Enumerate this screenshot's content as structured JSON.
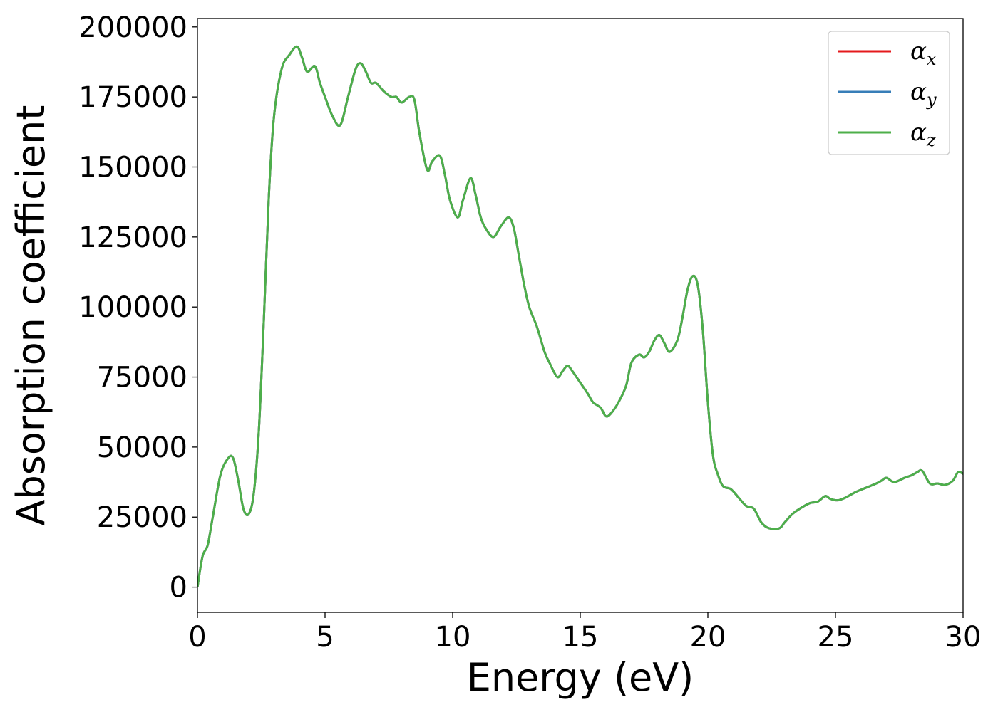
{
  "chart_data": {
    "type": "line",
    "title": "",
    "xlabel": "Energy (eV)",
    "ylabel": "Absorption coefficient",
    "xlim": [
      0,
      30
    ],
    "ylim": [
      -9000,
      203000
    ],
    "xticks": [
      0,
      5,
      10,
      15,
      20,
      25,
      30
    ],
    "xtick_labels": [
      "0",
      "5",
      "10",
      "15",
      "20",
      "25",
      "30"
    ],
    "yticks": [
      0,
      25000,
      50000,
      75000,
      100000,
      125000,
      150000,
      175000,
      200000
    ],
    "ytick_labels": [
      "0",
      "25000",
      "50000",
      "75000",
      "100000",
      "125000",
      "150000",
      "175000",
      "200000"
    ],
    "grid": false,
    "legend_position": "top-right",
    "series": [
      {
        "name": "αx",
        "legend_symbol": "α",
        "legend_subscript": "x",
        "color": "#e41a1c",
        "x": [
          0,
          0.2,
          0.4,
          0.6,
          0.9,
          1.2,
          1.4,
          1.6,
          1.8,
          2.0,
          2.2,
          2.4,
          2.6,
          2.8,
          3.0,
          3.3,
          3.6,
          3.9,
          4.1,
          4.3,
          4.6,
          4.8,
          5.0,
          5.3,
          5.6,
          5.9,
          6.2,
          6.4,
          6.6,
          6.8,
          7.0,
          7.3,
          7.6,
          7.8,
          8.0,
          8.3,
          8.5,
          8.7,
          9.0,
          9.2,
          9.5,
          9.7,
          9.9,
          10.2,
          10.4,
          10.7,
          10.9,
          11.1,
          11.3,
          11.6,
          11.9,
          12.2,
          12.4,
          12.6,
          12.8,
          13.0,
          13.3,
          13.6,
          13.8,
          14.1,
          14.3,
          14.5,
          14.7,
          15.0,
          15.3,
          15.5,
          15.8,
          16.0,
          16.2,
          16.5,
          16.8,
          17.0,
          17.3,
          17.5,
          17.7,
          17.9,
          18.1,
          18.3,
          18.5,
          18.8,
          19.0,
          19.2,
          19.4,
          19.6,
          19.8,
          20.0,
          20.2,
          20.4,
          20.6,
          20.9,
          21.2,
          21.5,
          21.8,
          22.1,
          22.4,
          22.8,
          23.0,
          23.3,
          23.6,
          24.0,
          24.3,
          24.6,
          24.8,
          25.1,
          25.4,
          25.8,
          26.2,
          26.6,
          26.8,
          27.0,
          27.3,
          27.7,
          28.0,
          28.2,
          28.4,
          28.7,
          29.0,
          29.3,
          29.6,
          29.8,
          30.0
        ],
        "y": [
          0,
          11000,
          15000,
          25000,
          40000,
          46000,
          46000,
          38000,
          28000,
          26000,
          33000,
          55000,
          95000,
          140000,
          168000,
          185000,
          190000,
          193000,
          189000,
          184000,
          186000,
          180000,
          175000,
          168000,
          165000,
          175000,
          185000,
          187000,
          184000,
          180000,
          180000,
          177000,
          175000,
          175000,
          173000,
          175000,
          174000,
          162000,
          149000,
          152000,
          154000,
          147000,
          138000,
          132000,
          138000,
          146000,
          140000,
          132000,
          128000,
          125000,
          129000,
          132000,
          128000,
          118000,
          108000,
          100000,
          93000,
          84000,
          80000,
          75000,
          77000,
          79000,
          77000,
          73000,
          69000,
          66000,
          64000,
          61000,
          62000,
          66000,
          72000,
          80000,
          83000,
          82000,
          84000,
          88000,
          90000,
          87000,
          84000,
          88000,
          96000,
          106000,
          111000,
          108000,
          92000,
          66000,
          47000,
          40000,
          36000,
          35000,
          32000,
          29000,
          28000,
          23000,
          21000,
          21000,
          23000,
          26000,
          28000,
          30000,
          30500,
          32500,
          31500,
          31000,
          32000,
          34000,
          35500,
          37000,
          38000,
          39000,
          37500,
          39000,
          40000,
          41000,
          41500,
          37000,
          37000,
          36500,
          38000,
          41000,
          40500
        ]
      },
      {
        "name": "αy",
        "legend_symbol": "α",
        "legend_subscript": "y",
        "color": "#377eb8",
        "same_as": "αx"
      },
      {
        "name": "αz",
        "legend_symbol": "α",
        "legend_subscript": "z",
        "color": "#4daf4a",
        "same_as": "αx"
      }
    ]
  }
}
